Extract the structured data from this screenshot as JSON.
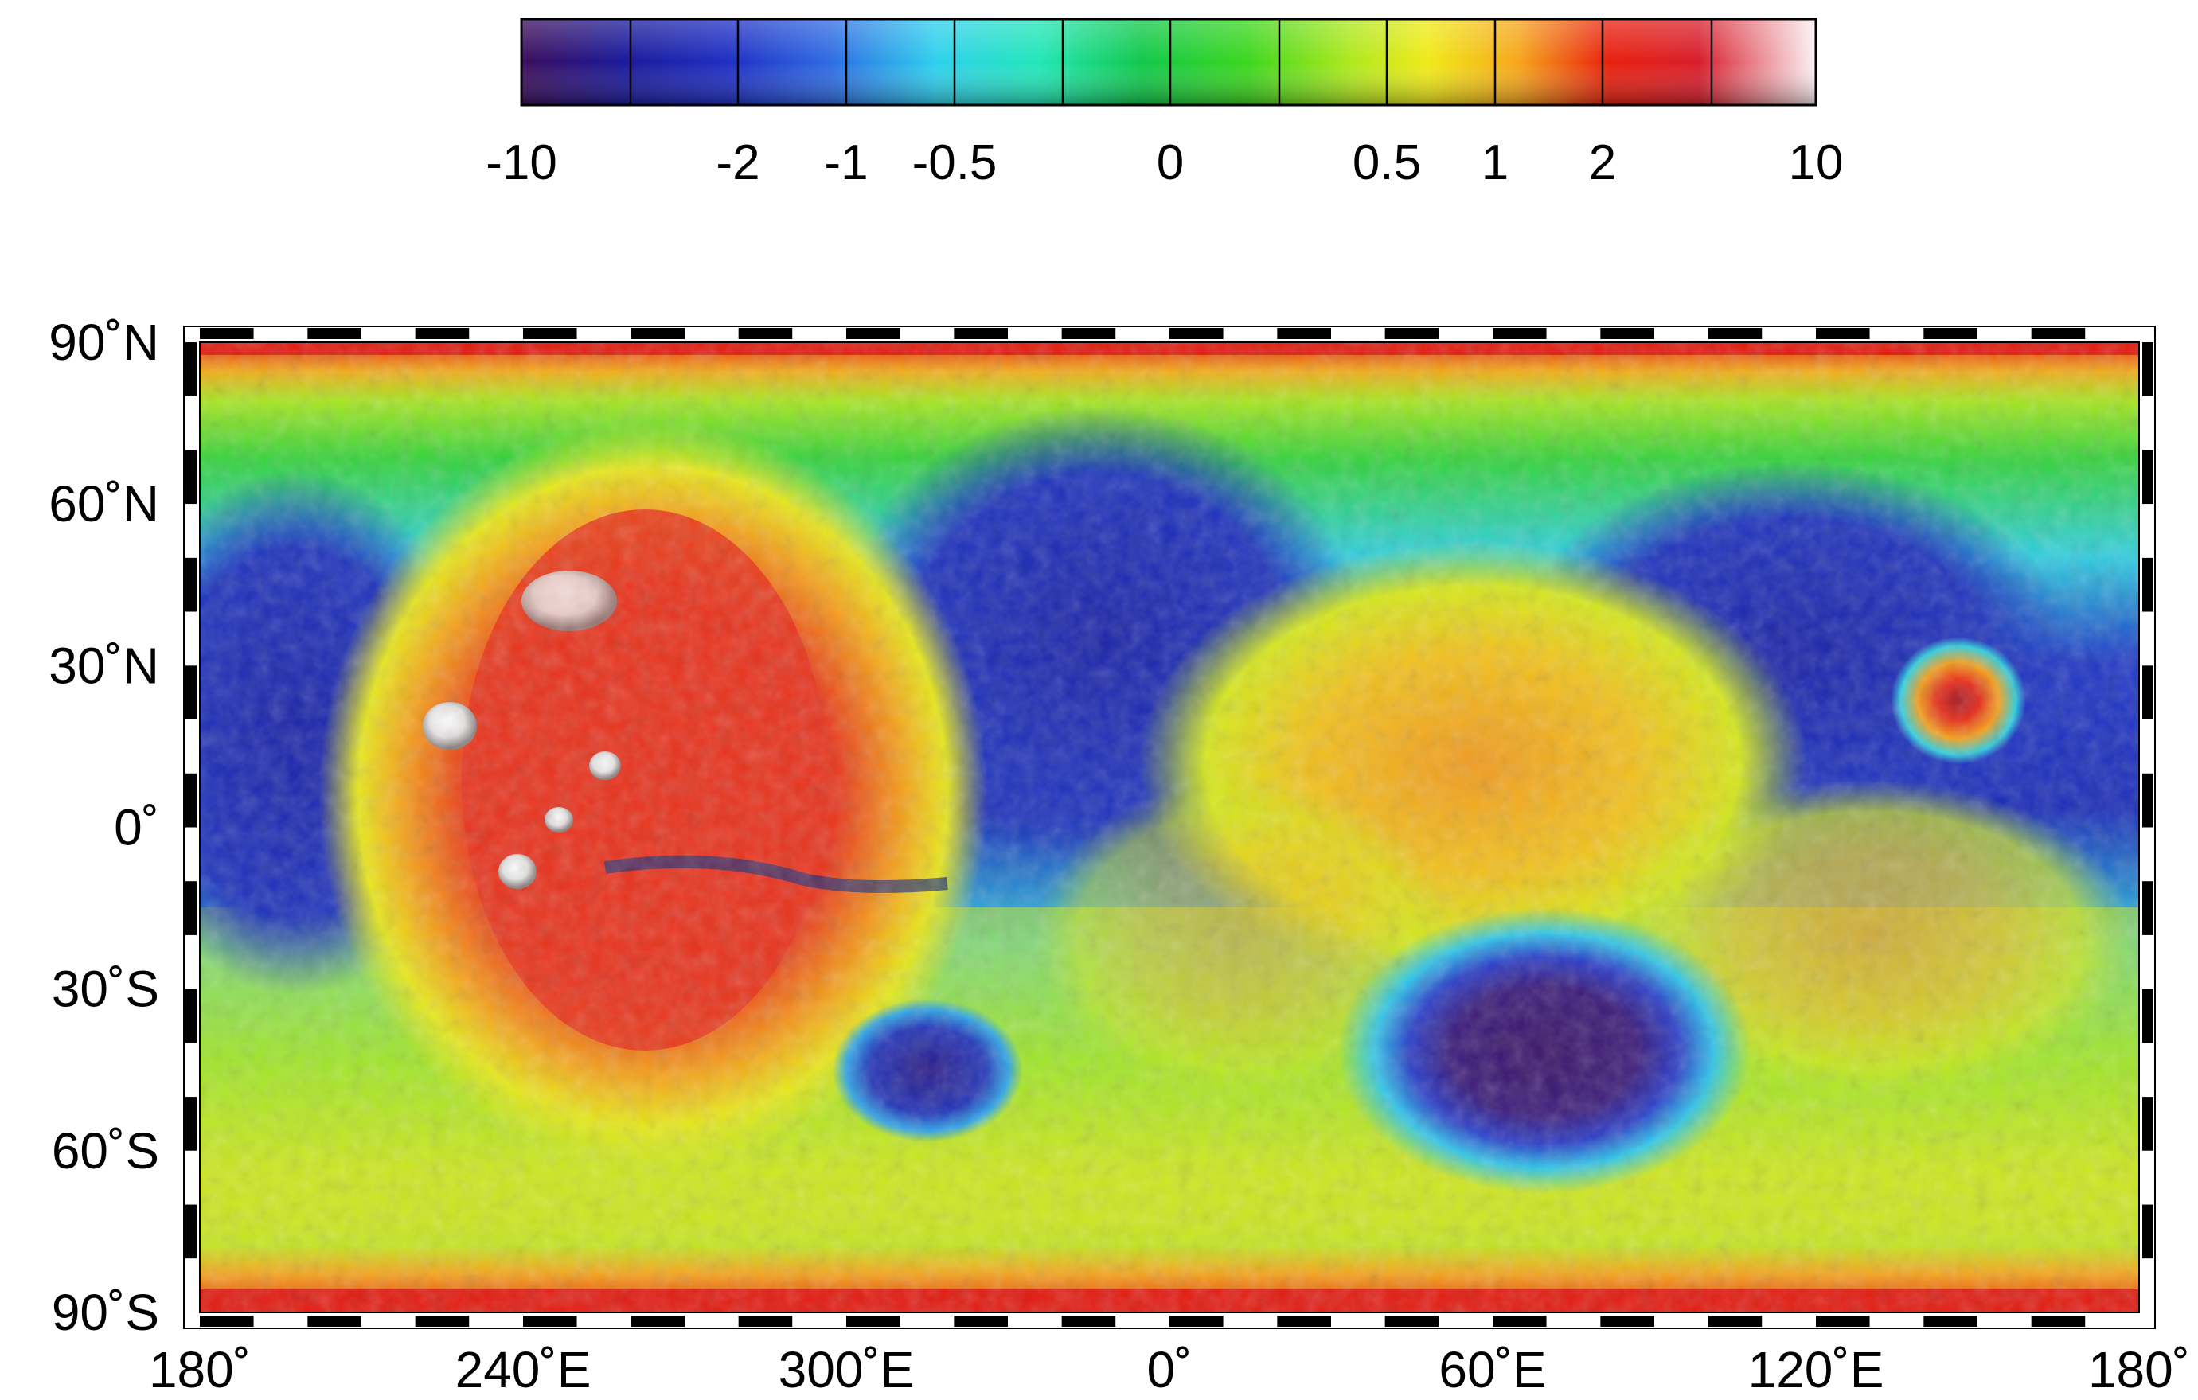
{
  "colorbar": {
    "ticks": [
      "-10",
      "-2",
      "-1",
      "-0.5",
      "0",
      "0.5",
      "1",
      "2",
      "10"
    ],
    "colors": [
      "#2a0a55",
      "#141a9a",
      "#2f63e0",
      "#2fd2ee",
      "#1ee6b4",
      "#10c84a",
      "#6ee630",
      "#d8e81a",
      "#f7ac1c",
      "#e81a0e",
      "#ffffff"
    ]
  },
  "map": {
    "lat_labels": [
      "90˚N",
      "60˚N",
      "30˚N",
      "0˚",
      "30˚S",
      "60˚S",
      "90˚S"
    ],
    "lon_labels": [
      "180˚",
      "240˚E",
      "300˚E",
      "0˚",
      "60˚E",
      "120˚E",
      "180˚"
    ]
  }
}
